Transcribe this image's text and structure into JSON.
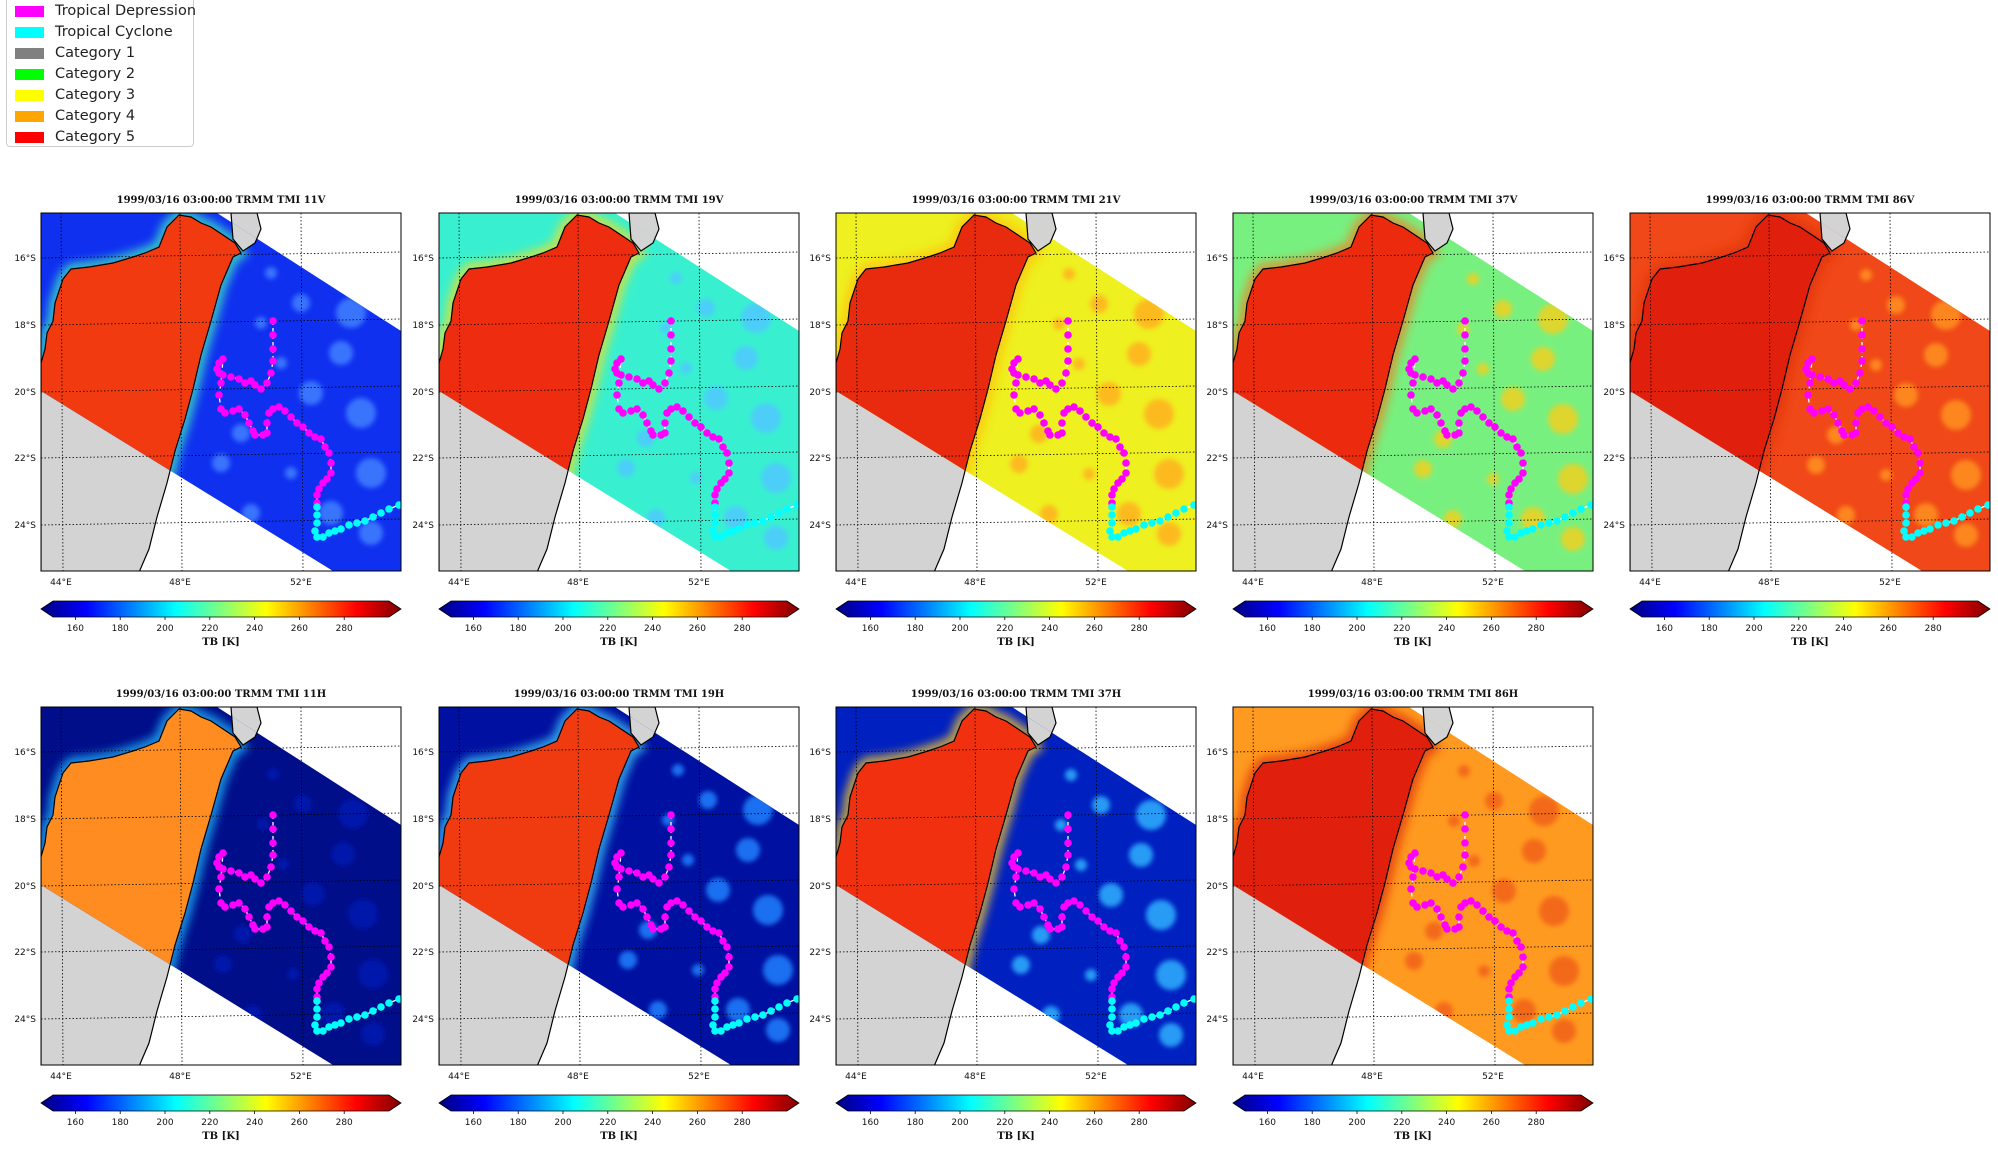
{
  "legend": {
    "items": [
      {
        "label": "Tropical Depression",
        "color": "#ff00ff"
      },
      {
        "label": "Tropical Cyclone",
        "color": "#00ffff"
      },
      {
        "label": "Category 1",
        "color": "#808080"
      },
      {
        "label": "Category 2",
        "color": "#00ff00"
      },
      {
        "label": "Category 3",
        "color": "#ffff00"
      },
      {
        "label": "Category 4",
        "color": "#ffa500"
      },
      {
        "label": "Category 5",
        "color": "#ff0000"
      }
    ]
  },
  "panels": [
    {
      "title": "1999/03/16 03:00:00  TRMM TMI 11V",
      "channel": "11V",
      "land": "#f23a10",
      "ocean": "#1030f0",
      "ocean_blobs": "#4080ff",
      "coast_ring": "#40f0c0"
    },
    {
      "title": "1999/03/16 03:00:00  TRMM TMI 19V",
      "channel": "19V",
      "land": "#ee2c10",
      "ocean": "#38f0d0",
      "ocean_blobs": "#50c8ff",
      "coast_ring": "#f0e020"
    },
    {
      "title": "1999/03/16 03:00:00  TRMM TMI 21V",
      "channel": "21V",
      "land": "#e82a0e",
      "ocean": "#eef020",
      "ocean_blobs": "#ffb020",
      "coast_ring": "#ffc010"
    },
    {
      "title": "1999/03/16 03:00:00  TRMM TMI 37V",
      "channel": "37V",
      "land": "#ec2a0e",
      "ocean": "#78f080",
      "ocean_blobs": "#f0d020",
      "coast_ring": "#f08020"
    },
    {
      "title": "1999/03/16 03:00:00  TRMM TMI 86V",
      "channel": "86V",
      "land": "#e0200c",
      "ocean": "#f04818",
      "ocean_blobs": "#ff9020",
      "coast_ring": "#e03010"
    },
    {
      "title": "1999/03/16 03:00:00  TRMM TMI 11H",
      "channel": "11H",
      "land": "#ff8c20",
      "ocean": "#000e8a",
      "ocean_blobs": "#0018b0",
      "coast_ring": "#20c0ff"
    },
    {
      "title": "1999/03/16 03:00:00  TRMM TMI 19H",
      "channel": "19H",
      "land": "#f03a10",
      "ocean": "#0010a0",
      "ocean_blobs": "#2080ff",
      "coast_ring": "#40d0ff"
    },
    {
      "title": "1999/03/16 03:00:00  TRMM TMI 37H",
      "channel": "37H",
      "land": "#f0300e",
      "ocean": "#0020c0",
      "ocean_blobs": "#30b0ff",
      "coast_ring": "#ffd020"
    },
    {
      "title": "1999/03/16 03:00:00  TRMM TMI 86H",
      "channel": "86H",
      "land": "#e0200c",
      "ocean": "#ff9a20",
      "ocean_blobs": "#f06018",
      "coast_ring": "#e03010"
    }
  ],
  "map_axes": {
    "lat_ticks": [
      "16°S",
      "18°S",
      "20°S",
      "22°S",
      "24°S"
    ],
    "lon_ticks": [
      "44°E",
      "48°E",
      "52°E"
    ]
  },
  "colorbar": {
    "label": "TB [K]",
    "ticks": [
      160,
      180,
      200,
      220,
      240,
      260,
      280
    ],
    "range": [
      150,
      300
    ],
    "colors": [
      "#00007f",
      "#0000ff",
      "#007fff",
      "#00ffff",
      "#7fff7f",
      "#ffff00",
      "#ff7f00",
      "#ff0000",
      "#7f0000"
    ]
  },
  "track": {
    "depression_color": "#ff00ff",
    "cyclone_color": "#00ffff"
  }
}
